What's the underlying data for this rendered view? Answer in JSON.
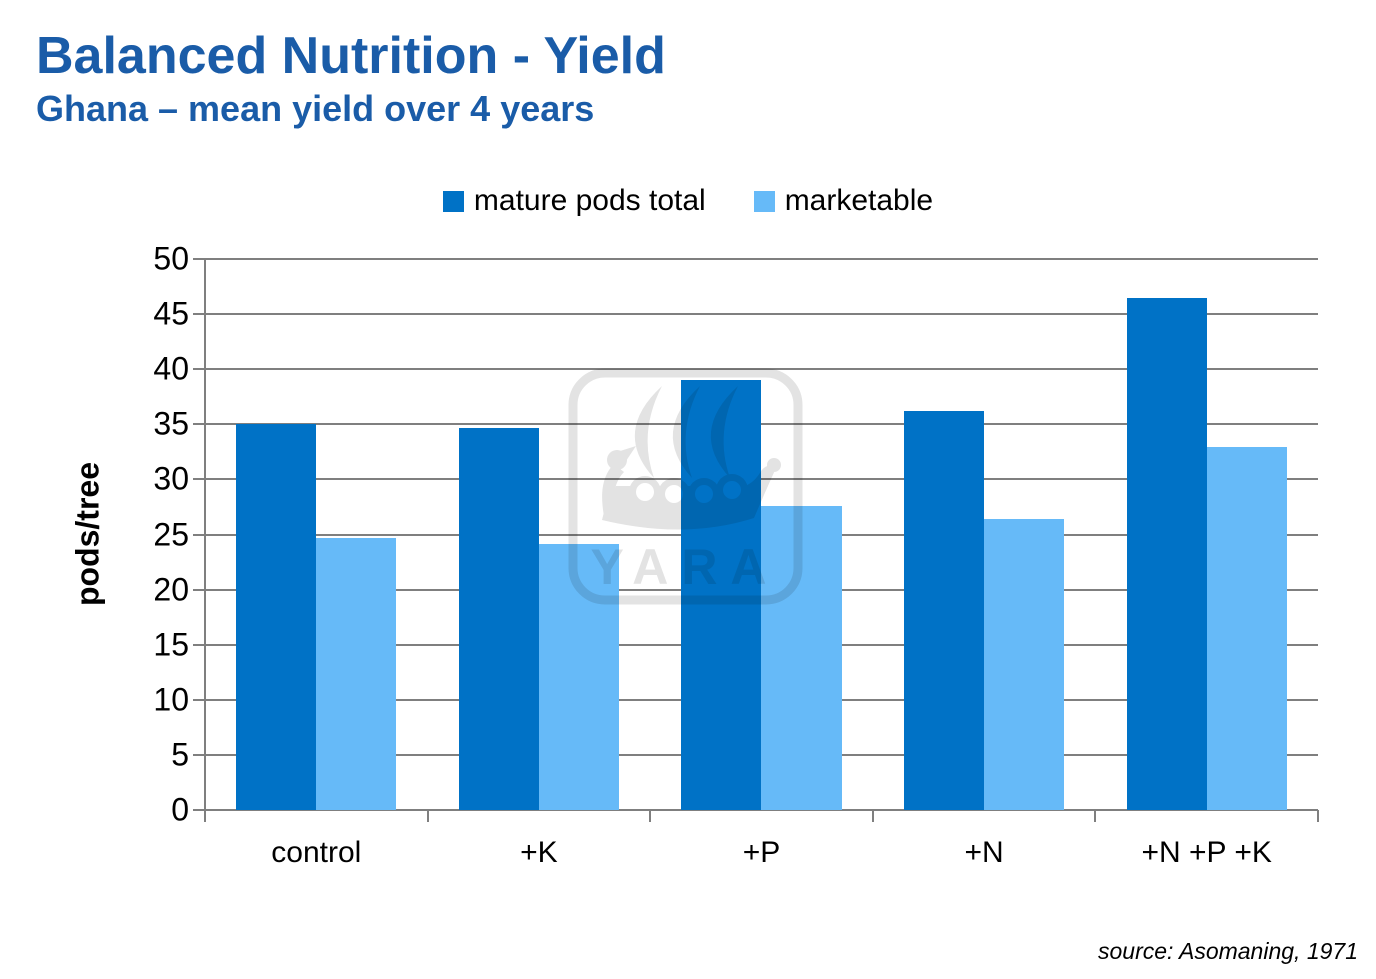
{
  "header": {
    "title": "Balanced Nutrition - Yield",
    "subtitle": "Ghana – mean yield over 4 years",
    "title_color": "#1A5CA8"
  },
  "chart_data": {
    "type": "bar",
    "title": "",
    "categories": [
      "control",
      "+K",
      "+P",
      "+N",
      "+N +P +K"
    ],
    "series": [
      {
        "name": "mature pods total",
        "color": "#0072C6",
        "values": [
          35.0,
          34.7,
          39.0,
          36.2,
          46.5
        ]
      },
      {
        "name": "marketable",
        "color": "#66BAF8",
        "values": [
          24.7,
          24.1,
          27.6,
          26.4,
          32.9
        ]
      }
    ],
    "xlabel": "",
    "ylabel": "pods/tree",
    "ylim": [
      0,
      50
    ],
    "ytick_step": 5,
    "yticks": [
      0,
      5,
      10,
      15,
      20,
      25,
      30,
      35,
      40,
      45,
      50
    ],
    "grid": true,
    "gridline_color": "#7F7F7F",
    "legend_position": "top-center"
  },
  "footer": {
    "source": "source: Asomaning, 1971"
  },
  "watermark": {
    "text": "YARA",
    "color": "#E3E3E3"
  }
}
